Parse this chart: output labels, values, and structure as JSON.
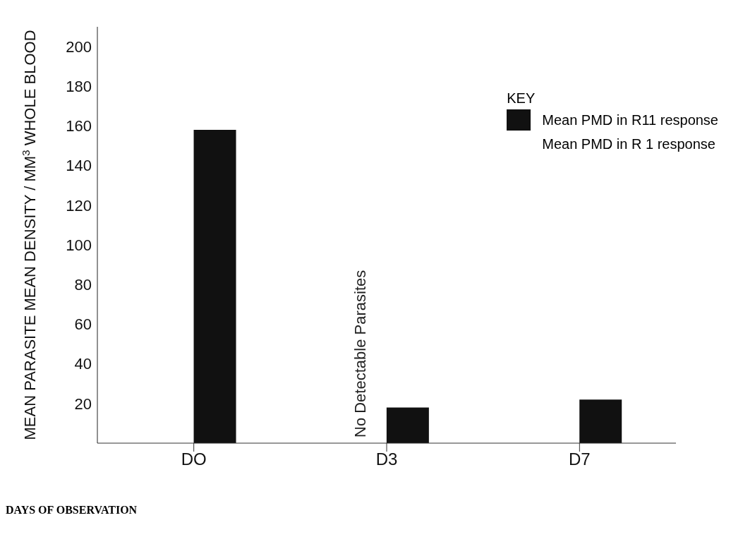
{
  "chart_data": {
    "type": "bar",
    "ylabel": "MEAN PARASITE MEAN DENSITY / MM$^{3}$ WHOLE BLOOD",
    "xlabel": "DAYS OF OBSERVATION",
    "legend_title": "KEY",
    "categories": [
      "DO",
      "D3",
      "D7"
    ],
    "series": [
      {
        "name": "Mean PMD in R 1 response",
        "values": [
          null,
          null,
          null
        ]
      },
      {
        "name": "Mean PMD in R11 response",
        "color": "#111111",
        "values": [
          158,
          18,
          22
        ]
      }
    ],
    "ylim": [
      0,
      210
    ],
    "yticks": [
      20,
      40,
      60,
      80,
      100,
      120,
      140,
      160,
      180,
      200
    ],
    "legend": "top right",
    "annotations": [
      {
        "text": "No Detectable Parasites",
        "x": "D3",
        "y": 0
      }
    ]
  }
}
